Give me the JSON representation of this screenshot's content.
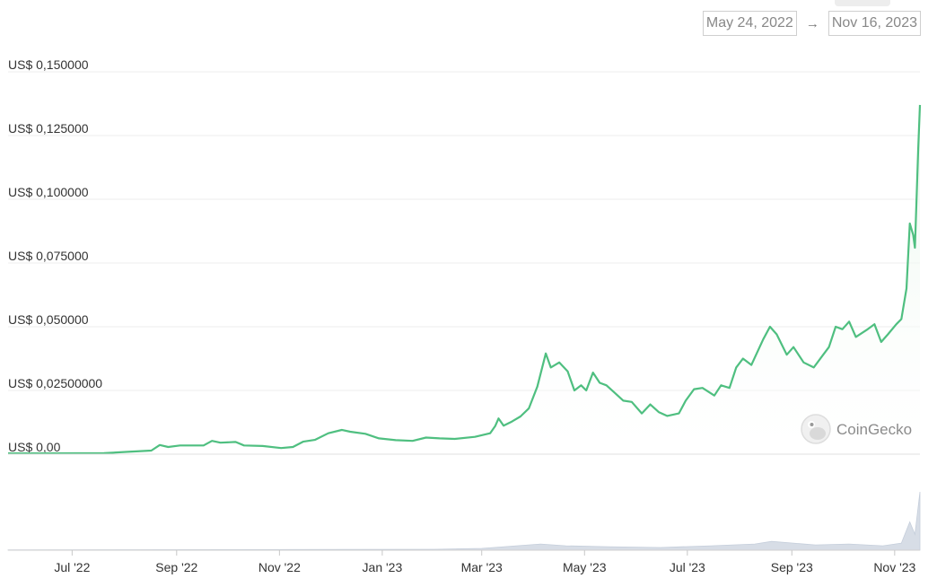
{
  "date_range": {
    "start": "May 24, 2022",
    "arrow": "→",
    "end": "Nov 16, 2023"
  },
  "watermark": {
    "text": "CoinGecko",
    "icon": "gecko-logo-icon"
  },
  "colors": {
    "line": "#4fbf80",
    "fill": "#e9f6ec",
    "grid": "#eeeeee",
    "volume": "#d7dde6"
  },
  "chart_data": {
    "type": "area",
    "y_ticks": [
      {
        "value": 0.15,
        "label": "US$ 0,150000"
      },
      {
        "value": 0.125,
        "label": "US$ 0,125000"
      },
      {
        "value": 0.1,
        "label": "US$ 0,100000"
      },
      {
        "value": 0.075,
        "label": "US$ 0,075000"
      },
      {
        "value": 0.05,
        "label": "US$ 0,050000"
      },
      {
        "value": 0.025,
        "label": "US$ 0,02500000"
      },
      {
        "value": 0,
        "label": "US$ 0,00"
      }
    ],
    "ylim": [
      0,
      0.15
    ],
    "xlim": [
      "2022-05-24",
      "2023-11-16"
    ],
    "x_ticks": [
      {
        "date": "2022-07-01",
        "label": "Jul '22"
      },
      {
        "date": "2022-09-01",
        "label": "Sep '22"
      },
      {
        "date": "2022-11-01",
        "label": "Nov '22"
      },
      {
        "date": "2023-01-01",
        "label": "Jan '23"
      },
      {
        "date": "2023-03-01",
        "label": "Mar '23"
      },
      {
        "date": "2023-05-01",
        "label": "May '23"
      },
      {
        "date": "2023-07-01",
        "label": "Jul '23"
      },
      {
        "date": "2023-09-01",
        "label": "Sep '23"
      },
      {
        "date": "2023-11-01",
        "label": "Nov '23"
      }
    ],
    "grid": true,
    "series": [
      {
        "points": [
          [
            "2022-05-24",
            0.0003
          ],
          [
            "2022-06-15",
            0.0003
          ],
          [
            "2022-07-20",
            0.0004
          ],
          [
            "2022-08-03",
            0.0009
          ],
          [
            "2022-08-17",
            0.0014
          ],
          [
            "2022-08-22",
            0.0036
          ],
          [
            "2022-08-27",
            0.0028
          ],
          [
            "2022-09-03",
            0.0034
          ],
          [
            "2022-09-17",
            0.0034
          ],
          [
            "2022-09-22",
            0.0052
          ],
          [
            "2022-09-27",
            0.0045
          ],
          [
            "2022-10-06",
            0.0048
          ],
          [
            "2022-10-11",
            0.0034
          ],
          [
            "2022-10-22",
            0.0032
          ],
          [
            "2022-11-02",
            0.0024
          ],
          [
            "2022-11-09",
            0.0028
          ],
          [
            "2022-11-15",
            0.0049
          ],
          [
            "2022-11-22",
            0.0056
          ],
          [
            "2022-11-30",
            0.0082
          ],
          [
            "2022-12-08",
            0.0095
          ],
          [
            "2022-12-13",
            0.0088
          ],
          [
            "2022-12-22",
            0.008
          ],
          [
            "2022-12-30",
            0.0062
          ],
          [
            "2023-01-09",
            0.0055
          ],
          [
            "2023-01-19",
            0.0052
          ],
          [
            "2023-01-27",
            0.0065
          ],
          [
            "2023-02-04",
            0.0062
          ],
          [
            "2023-02-13",
            0.006
          ],
          [
            "2023-02-25",
            0.0068
          ],
          [
            "2023-03-06",
            0.0082
          ],
          [
            "2023-03-09",
            0.011
          ],
          [
            "2023-03-11",
            0.014
          ],
          [
            "2023-03-14",
            0.0112
          ],
          [
            "2023-03-19",
            0.0128
          ],
          [
            "2023-03-24",
            0.0148
          ],
          [
            "2023-03-29",
            0.018
          ],
          [
            "2023-04-03",
            0.0265
          ],
          [
            "2023-04-08",
            0.0395
          ],
          [
            "2023-04-11",
            0.034
          ],
          [
            "2023-04-16",
            0.036
          ],
          [
            "2023-04-21",
            0.0325
          ],
          [
            "2023-04-25",
            0.025
          ],
          [
            "2023-04-29",
            0.027
          ],
          [
            "2023-05-02",
            0.025
          ],
          [
            "2023-05-06",
            0.032
          ],
          [
            "2023-05-10",
            0.028
          ],
          [
            "2023-05-14",
            0.027
          ],
          [
            "2023-05-19",
            0.024
          ],
          [
            "2023-05-24",
            0.021
          ],
          [
            "2023-05-29",
            0.0205
          ],
          [
            "2023-06-04",
            0.016
          ],
          [
            "2023-06-09",
            0.0195
          ],
          [
            "2023-06-14",
            0.0165
          ],
          [
            "2023-06-19",
            0.015
          ],
          [
            "2023-06-26",
            0.016
          ],
          [
            "2023-06-30",
            0.021
          ],
          [
            "2023-07-05",
            0.0255
          ],
          [
            "2023-07-10",
            0.026
          ],
          [
            "2023-07-17",
            0.023
          ],
          [
            "2023-07-21",
            0.027
          ],
          [
            "2023-07-26",
            0.026
          ],
          [
            "2023-07-30",
            0.034
          ],
          [
            "2023-08-03",
            0.0375
          ],
          [
            "2023-08-08",
            0.035
          ],
          [
            "2023-08-15",
            0.045
          ],
          [
            "2023-08-19",
            0.05
          ],
          [
            "2023-08-23",
            0.047
          ],
          [
            "2023-08-29",
            0.039
          ],
          [
            "2023-09-02",
            0.042
          ],
          [
            "2023-09-08",
            0.036
          ],
          [
            "2023-09-14",
            0.034
          ],
          [
            "2023-09-19",
            0.0385
          ],
          [
            "2023-09-23",
            0.042
          ],
          [
            "2023-09-27",
            0.05
          ],
          [
            "2023-10-01",
            0.049
          ],
          [
            "2023-10-05",
            0.052
          ],
          [
            "2023-10-09",
            0.046
          ],
          [
            "2023-10-16",
            0.049
          ],
          [
            "2023-10-20",
            0.051
          ],
          [
            "2023-10-24",
            0.044
          ],
          [
            "2023-10-28",
            0.047
          ],
          [
            "2023-11-02",
            0.051
          ],
          [
            "2023-11-05",
            0.053
          ],
          [
            "2023-11-08",
            0.065
          ],
          [
            "2023-11-10",
            0.0905
          ],
          [
            "2023-11-12",
            0.086
          ],
          [
            "2023-11-13",
            0.081
          ],
          [
            "2023-11-15",
            0.12
          ],
          [
            "2023-11-16",
            0.137
          ]
        ]
      }
    ],
    "volume": [
      [
        "2022-05-24",
        0.2
      ],
      [
        "2022-10-01",
        0.3
      ],
      [
        "2023-02-01",
        0.5
      ],
      [
        "2023-03-01",
        1.0
      ],
      [
        "2023-04-05",
        3.5
      ],
      [
        "2023-04-20",
        2.5
      ],
      [
        "2023-05-15",
        2.0
      ],
      [
        "2023-06-15",
        1.5
      ],
      [
        "2023-07-15",
        2.5
      ],
      [
        "2023-08-10",
        3.5
      ],
      [
        "2023-08-20",
        5.0
      ],
      [
        "2023-09-15",
        3.0
      ],
      [
        "2023-10-05",
        3.5
      ],
      [
        "2023-10-25",
        2.5
      ],
      [
        "2023-11-05",
        4.0
      ],
      [
        "2023-11-10",
        16.0
      ],
      [
        "2023-11-13",
        9.0
      ],
      [
        "2023-11-16",
        33.0
      ]
    ]
  }
}
